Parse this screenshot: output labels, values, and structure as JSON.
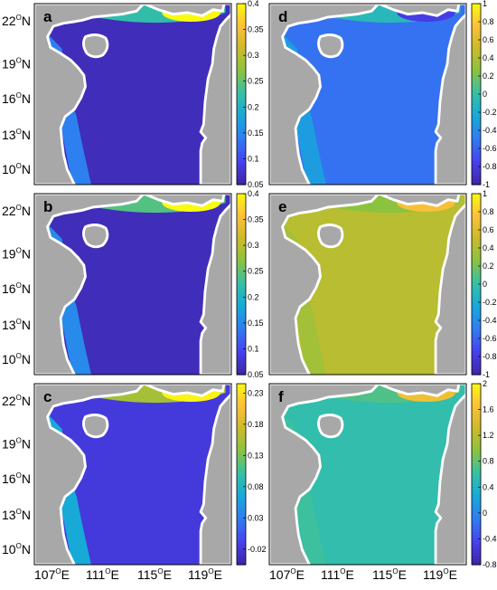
{
  "chart_data": {
    "type": "heatmap",
    "x_ticks": [
      "107",
      "111",
      "115",
      "119"
    ],
    "y_ticks": [
      "22",
      "19",
      "16",
      "13",
      "10"
    ],
    "x_tick_suffix": "E",
    "y_tick_suffix": "N",
    "degree_mark": "O",
    "colormap": [
      "#3e26a8",
      "#4743f2",
      "#2f7ef1",
      "#17a9d9",
      "#36c0a5",
      "#8cc33e",
      "#cdba2b",
      "#fdc13a",
      "#f9fb0e"
    ],
    "land_color": "#a8a8a8",
    "coast_color": "#ffffff",
    "panels": [
      {
        "letter": "a",
        "colorbar_ticks": [
          "0.4",
          "0.35",
          "0.3",
          "0.25",
          "0.2",
          "0.15",
          "0.1",
          "0.05"
        ],
        "clim": [
          0.05,
          0.4
        ],
        "background_value": 0.06,
        "shelf_value": 0.22,
        "peak_value": 0.4
      },
      {
        "letter": "b",
        "colorbar_ticks": [
          "0.4",
          "0.35",
          "0.3",
          "0.25",
          "0.2",
          "0.15",
          "0.1",
          "0.05"
        ],
        "clim": [
          0.05,
          0.4
        ],
        "background_value": 0.06,
        "shelf_value": 0.24,
        "peak_value": 0.4
      },
      {
        "letter": "c",
        "colorbar_ticks": [
          "0.23",
          "0.18",
          "0.13",
          "0.08",
          "0.03",
          "-0.02"
        ],
        "clim": [
          -0.045,
          0.245
        ],
        "background_value": -0.02,
        "shelf_value": 0.15,
        "peak_value": 0.24
      },
      {
        "letter": "d",
        "colorbar_ticks": [
          "1",
          "0.8",
          "0.6",
          "0.4",
          "0.2",
          "0",
          "-0.2",
          "-0.4",
          "-0.6",
          "-0.8",
          "-1"
        ],
        "clim": [
          -1,
          1
        ],
        "background_value": -0.55,
        "shelf_value": -0.1,
        "peak_value": -0.8
      },
      {
        "letter": "e",
        "colorbar_ticks": [
          "1",
          "0.8",
          "0.6",
          "0.4",
          "0.2",
          "0",
          "-0.2",
          "-0.4",
          "-0.6",
          "-0.8",
          "-1"
        ],
        "clim": [
          -1,
          1
        ],
        "background_value": 0.42,
        "shelf_value": 0.25,
        "peak_value": 0.72
      },
      {
        "letter": "f",
        "colorbar_ticks": [
          "2",
          "1.6",
          "1.2",
          "0.8",
          "0.4",
          "0",
          "-0.4",
          "-0.8"
        ],
        "clim": [
          -0.8,
          2
        ],
        "background_value": 0.55,
        "shelf_value": 0.7,
        "peak_value": 1.55
      }
    ]
  }
}
